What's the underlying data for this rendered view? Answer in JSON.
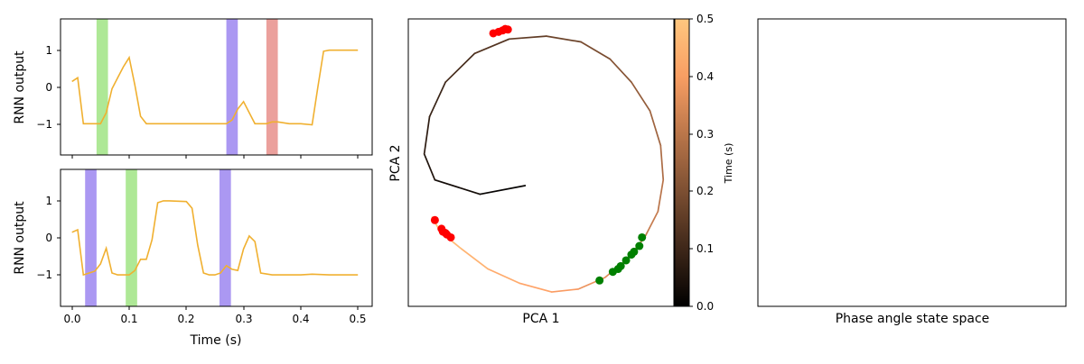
{
  "chart_data": [
    {
      "type": "line",
      "ylabel": "RNN output",
      "xlim": [
        -0.02,
        0.525
      ],
      "ylim": [
        -1.85,
        1.85
      ],
      "yticks": [
        1,
        0,
        -1
      ],
      "ytick_labels": [
        "1",
        "0",
        "−1"
      ],
      "xticks": [
        0.0,
        0.1,
        0.2,
        0.3,
        0.4,
        0.5
      ],
      "line_color": "#f0b030",
      "shaded_bands": [
        {
          "start": 0.043,
          "end": 0.063,
          "color": "#aee896"
        },
        {
          "start": 0.27,
          "end": 0.29,
          "color": "#ab98f2"
        },
        {
          "start": 0.34,
          "end": 0.36,
          "color": "#eba09c"
        }
      ],
      "x": [
        0.0,
        0.01,
        0.02,
        0.03,
        0.04,
        0.05,
        0.06,
        0.07,
        0.08,
        0.09,
        0.1,
        0.11,
        0.12,
        0.13,
        0.14,
        0.15,
        0.2,
        0.25,
        0.27,
        0.28,
        0.29,
        0.3,
        0.32,
        0.34,
        0.35,
        0.36,
        0.38,
        0.4,
        0.42,
        0.43,
        0.44,
        0.45,
        0.5
      ],
      "y": [
        0.15,
        0.25,
        -1.0,
        -1.0,
        -1.0,
        -1.0,
        -0.7,
        -0.05,
        0.25,
        0.55,
        0.8,
        0.05,
        -0.8,
        -1.0,
        -1.0,
        -1.0,
        -1.0,
        -1.0,
        -1.0,
        -0.9,
        -0.6,
        -0.4,
        -1.0,
        -1.0,
        -0.95,
        -0.95,
        -1.0,
        -1.0,
        -1.03,
        0.0,
        0.97,
        1.0,
        1.0
      ]
    },
    {
      "type": "line",
      "xlabel": "Time (s)",
      "ylabel": "RNN output",
      "xlim": [
        -0.02,
        0.525
      ],
      "ylim": [
        -1.85,
        1.85
      ],
      "yticks": [
        1,
        0,
        -1
      ],
      "ytick_labels": [
        "1",
        "0",
        "−1"
      ],
      "xticks": [
        0.0,
        0.1,
        0.2,
        0.3,
        0.4,
        0.5
      ],
      "xtick_labels": [
        "0.0",
        "0.1",
        "0.2",
        "0.3",
        "0.4",
        "0.5"
      ],
      "line_color": "#f0b030",
      "shaded_bands": [
        {
          "start": 0.023,
          "end": 0.043,
          "color": "#ab98f2"
        },
        {
          "start": 0.094,
          "end": 0.114,
          "color": "#aee896"
        },
        {
          "start": 0.258,
          "end": 0.278,
          "color": "#ab98f2"
        }
      ],
      "x": [
        0.0,
        0.01,
        0.02,
        0.03,
        0.04,
        0.05,
        0.06,
        0.07,
        0.08,
        0.09,
        0.1,
        0.11,
        0.12,
        0.13,
        0.14,
        0.15,
        0.16,
        0.17,
        0.2,
        0.21,
        0.22,
        0.23,
        0.24,
        0.25,
        0.26,
        0.27,
        0.28,
        0.29,
        0.3,
        0.31,
        0.32,
        0.33,
        0.35,
        0.4,
        0.42,
        0.45,
        0.5
      ],
      "y": [
        0.15,
        0.22,
        -1.0,
        -0.95,
        -0.9,
        -0.7,
        -0.28,
        -0.95,
        -1.0,
        -1.0,
        -1.0,
        -0.88,
        -0.58,
        -0.58,
        -0.05,
        0.95,
        1.0,
        1.0,
        0.98,
        0.8,
        -0.2,
        -0.95,
        -1.0,
        -1.0,
        -0.95,
        -0.75,
        -0.85,
        -0.88,
        -0.3,
        0.05,
        -0.1,
        -0.95,
        -1.0,
        -1.0,
        -0.98,
        -1.0,
        -1.0
      ]
    },
    {
      "type": "line",
      "xlabel": "PCA 1",
      "ylabel": "PCA 2",
      "colorbar": {
        "label": "Time (s)",
        "range": [
          0.0,
          0.5
        ],
        "ticks": [
          0.0,
          0.1,
          0.2,
          0.3,
          0.4,
          0.5
        ],
        "tick_labels": [
          "0.0",
          "0.1",
          "0.2",
          "0.3",
          "0.4",
          "0.5"
        ],
        "colormap": "copper"
      },
      "trajectory": {
        "x": [
          0.44,
          0.27,
          0.1,
          0.06,
          0.08,
          0.14,
          0.25,
          0.38,
          0.52,
          0.65,
          0.76,
          0.84,
          0.91,
          0.95,
          0.96,
          0.94,
          0.89,
          0.82,
          0.74,
          0.64,
          0.54,
          0.42,
          0.3,
          0.2,
          0.12,
          0.09
        ],
        "y": [
          0.42,
          0.39,
          0.44,
          0.53,
          0.66,
          0.78,
          0.88,
          0.93,
          0.94,
          0.92,
          0.86,
          0.78,
          0.68,
          0.56,
          0.44,
          0.33,
          0.24,
          0.16,
          0.1,
          0.06,
          0.05,
          0.08,
          0.13,
          0.2,
          0.26,
          0.31
        ],
        "time": [
          0.0,
          0.02,
          0.04,
          0.06,
          0.08,
          0.1,
          0.12,
          0.14,
          0.16,
          0.18,
          0.2,
          0.22,
          0.24,
          0.26,
          0.28,
          0.3,
          0.32,
          0.34,
          0.36,
          0.38,
          0.4,
          0.42,
          0.44,
          0.46,
          0.48,
          0.5
        ]
      },
      "scatter_groups": [
        {
          "color": "#ff0000",
          "points": [
            [
              0.32,
              0.95
            ],
            [
              0.34,
              0.955
            ],
            [
              0.355,
              0.96
            ],
            [
              0.365,
              0.965
            ],
            [
              0.375,
              0.963
            ]
          ]
        },
        {
          "color": "#ff0000",
          "points": [
            [
              0.1,
              0.3
            ],
            [
              0.125,
              0.27
            ],
            [
              0.13,
              0.26
            ],
            [
              0.14,
              0.255
            ],
            [
              0.145,
              0.25
            ],
            [
              0.16,
              0.24
            ]
          ]
        },
        {
          "color": "#008000",
          "points": [
            [
              0.72,
              0.09
            ],
            [
              0.77,
              0.12
            ],
            [
              0.79,
              0.13
            ],
            [
              0.8,
              0.14
            ],
            [
              0.82,
              0.16
            ],
            [
              0.84,
              0.18
            ],
            [
              0.85,
              0.19
            ],
            [
              0.87,
              0.21
            ],
            [
              0.88,
              0.24
            ]
          ]
        }
      ]
    },
    {
      "type": "scatter",
      "xlabel": "Phase angle state space"
    }
  ]
}
